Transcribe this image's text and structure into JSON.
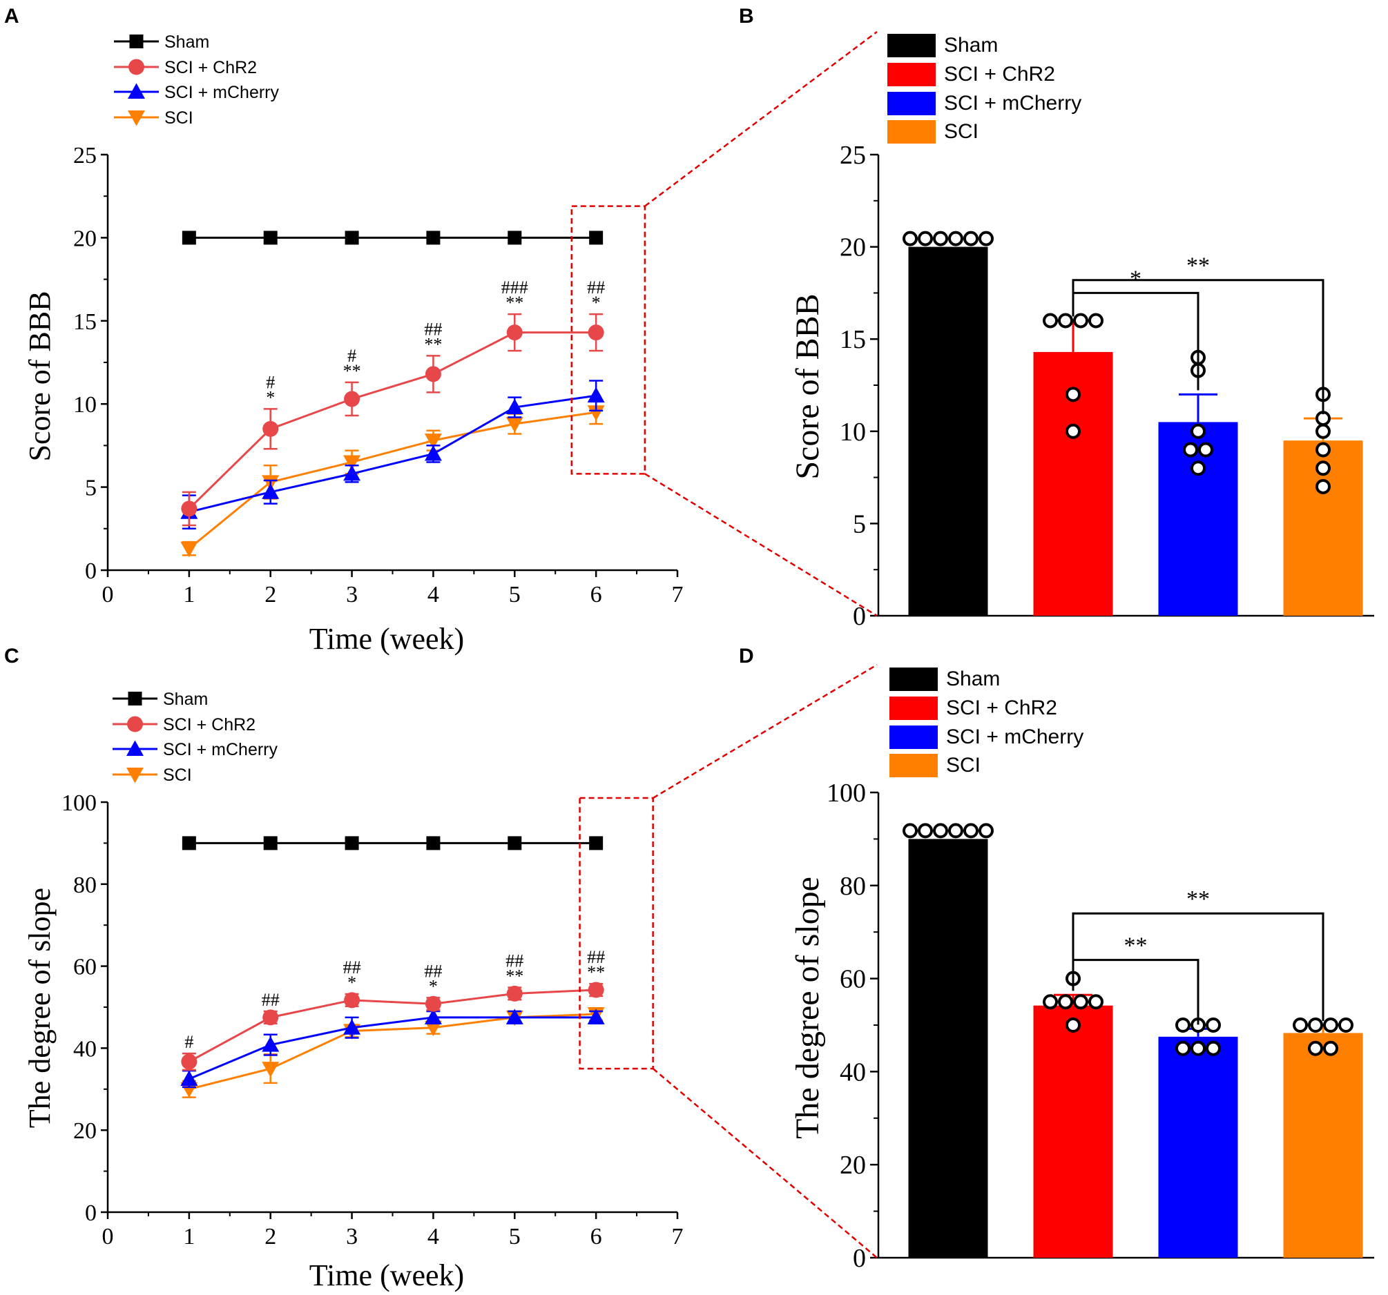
{
  "colors": {
    "sham": "#000000",
    "chr2_line": "#e8474a",
    "chr2_bar": "#ff0000",
    "mcherry": "#0000ff",
    "sci": "#ff8000",
    "zoom": "#e00000"
  },
  "chart_data": [
    {
      "id": "A",
      "panel_label": "A",
      "type": "line",
      "xlabel": "Time (week)",
      "ylabel": "Score of BBB",
      "xlim": [
        0,
        7
      ],
      "ylim": [
        0,
        25
      ],
      "xticks": [
        "0",
        "1",
        "2",
        "3",
        "4",
        "5",
        "6",
        "7"
      ],
      "yticks": [
        "0",
        "5",
        "10",
        "15",
        "20",
        "25"
      ],
      "x": [
        1,
        2,
        3,
        4,
        5,
        6
      ],
      "legend": [
        "Sham",
        "SCI + ChR2",
        "SCI + mCherry",
        "SCI"
      ],
      "series": [
        {
          "name": "Sham",
          "values": [
            20,
            20,
            20,
            20,
            20,
            20
          ],
          "err": [
            0,
            0,
            0,
            0,
            0,
            0
          ]
        },
        {
          "name": "SCI + ChR2",
          "values": [
            3.7,
            8.5,
            10.3,
            11.8,
            14.3,
            14.3
          ],
          "err": [
            1.0,
            1.2,
            1.0,
            1.1,
            1.1,
            1.1
          ]
        },
        {
          "name": "SCI + mCherry",
          "values": [
            3.5,
            4.7,
            5.8,
            7.0,
            9.8,
            10.5
          ],
          "err": [
            1.0,
            0.7,
            0.5,
            0.5,
            0.6,
            0.9
          ]
        },
        {
          "name": "SCI",
          "values": [
            1.3,
            5.3,
            6.5,
            7.8,
            8.8,
            9.5
          ],
          "err": [
            0.4,
            1.0,
            0.7,
            0.6,
            0.6,
            0.7
          ]
        }
      ],
      "annotations": [
        {
          "x": 2,
          "lines": [
            "#",
            "*"
          ]
        },
        {
          "x": 3,
          "lines": [
            "#",
            "**"
          ]
        },
        {
          "x": 4,
          "lines": [
            "##",
            "**"
          ]
        },
        {
          "x": 5,
          "lines": [
            "###",
            "**"
          ]
        },
        {
          "x": 6,
          "lines": [
            "##",
            "*"
          ]
        }
      ],
      "zoom_box": {
        "x": [
          5.7,
          6.6
        ],
        "y": [
          5.8,
          21.9
        ]
      }
    },
    {
      "id": "B",
      "panel_label": "B",
      "type": "bar",
      "ylabel": "Score of BBB",
      "ylim": [
        0,
        25
      ],
      "yticks": [
        "0",
        "5",
        "10",
        "15",
        "20",
        "25"
      ],
      "categories": [
        "Sham",
        "SCI + ChR2",
        "SCI + mCherry",
        "SCI"
      ],
      "legend": [
        "Sham",
        "SCI + ChR2",
        "SCI + mCherry",
        "SCI"
      ],
      "values": [
        20,
        14.3,
        10.5,
        9.5
      ],
      "err": [
        0,
        1.7,
        1.5,
        1.2
      ],
      "points": [
        [
          20,
          20,
          20,
          20,
          20,
          20
        ],
        [
          16,
          16,
          16,
          16,
          10,
          12
        ],
        [
          14,
          13.3,
          10,
          9,
          9,
          8
        ],
        [
          12,
          10.7,
          10,
          9,
          8,
          7
        ]
      ],
      "comparisons": [
        {
          "from": 1,
          "to": 2,
          "label": "*",
          "level": 17.5
        },
        {
          "from": 1,
          "to": 3,
          "label": "**",
          "level": 18.2
        }
      ]
    },
    {
      "id": "C",
      "panel_label": "C",
      "type": "line",
      "xlabel": "Time (week)",
      "ylabel": "The degree of slope",
      "xlim": [
        0,
        7
      ],
      "ylim": [
        0,
        100
      ],
      "xticks": [
        "0",
        "1",
        "2",
        "3",
        "4",
        "5",
        "6",
        "7"
      ],
      "yticks": [
        "0",
        "20",
        "40",
        "60",
        "80",
        "100"
      ],
      "x": [
        1,
        2,
        3,
        4,
        5,
        6
      ],
      "legend": [
        "Sham",
        "SCI + ChR2",
        "SCI + mCherry",
        "SCI"
      ],
      "series": [
        {
          "name": "Sham",
          "values": [
            90,
            90,
            90,
            90,
            90,
            90
          ],
          "err": [
            0,
            0,
            0,
            0,
            0,
            0
          ]
        },
        {
          "name": "SCI + ChR2",
          "values": [
            36.7,
            47.5,
            51.7,
            50.8,
            53.3,
            54.2
          ],
          "err": [
            2.0,
            1.5,
            1.5,
            1.5,
            1.5,
            1.5
          ]
        },
        {
          "name": "SCI + mCherry",
          "values": [
            32.5,
            40.8,
            45.0,
            47.5,
            47.5,
            47.5
          ],
          "err": [
            2.0,
            2.5,
            2.5,
            1.5,
            1.5,
            1.5
          ]
        },
        {
          "name": "SCI",
          "values": [
            30.0,
            35.0,
            44.2,
            45.0,
            47.5,
            48.3
          ],
          "err": [
            2.0,
            3.5,
            1.5,
            1.5,
            1.5,
            1.5
          ]
        }
      ],
      "annotations": [
        {
          "x": 1,
          "lines": [
            "#"
          ]
        },
        {
          "x": 2,
          "lines": [
            "##"
          ]
        },
        {
          "x": 3,
          "lines": [
            "##",
            "*"
          ]
        },
        {
          "x": 4,
          "lines": [
            "##",
            "*"
          ]
        },
        {
          "x": 5,
          "lines": [
            "##",
            "**"
          ]
        },
        {
          "x": 6,
          "lines": [
            "##",
            "**"
          ]
        }
      ],
      "zoom_box": {
        "x": [
          5.8,
          6.7
        ],
        "y": [
          35,
          101
        ]
      }
    },
    {
      "id": "D",
      "panel_label": "D",
      "type": "bar",
      "ylabel": "The degree of slope",
      "ylim": [
        0,
        100
      ],
      "yticks": [
        "0",
        "20",
        "40",
        "60",
        "80",
        "100"
      ],
      "categories": [
        "Sham",
        "SCI + ChR2",
        "SCI + mCherry",
        "SCI"
      ],
      "legend": [
        "Sham",
        "SCI + ChR2",
        "SCI + mCherry",
        "SCI"
      ],
      "values": [
        90,
        54.2,
        47.5,
        48.3
      ],
      "err": [
        0,
        2.3,
        1.7,
        1.7
      ],
      "points": [
        [
          90,
          90,
          90,
          90,
          90,
          90
        ],
        [
          60,
          55,
          55,
          55,
          55,
          50
        ],
        [
          50,
          50,
          50,
          45,
          45,
          45
        ],
        [
          50,
          50,
          50,
          50,
          45,
          45
        ]
      ],
      "comparisons": [
        {
          "from": 1,
          "to": 2,
          "label": "**",
          "level": 64
        },
        {
          "from": 1,
          "to": 3,
          "label": "**",
          "level": 74
        }
      ]
    }
  ]
}
